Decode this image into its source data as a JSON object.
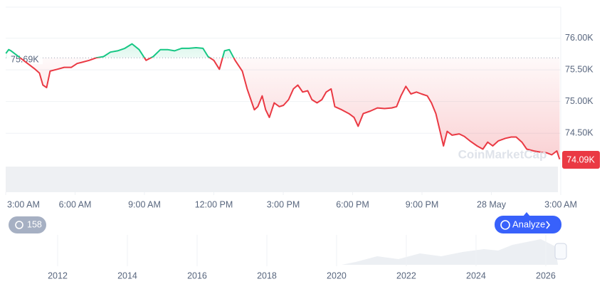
{
  "chart_data": {
    "type": "line",
    "x": [
      0.01,
      0.13,
      0.23,
      1.24,
      1.46,
      1.61,
      1.77,
      1.92,
      2.23,
      2.53,
      2.84,
      3.09,
      3.3,
      3.61,
      3.92,
      4.23,
      4.53,
      4.84,
      5.15,
      5.46,
      5.77,
      6.07,
      6.38,
      6.69,
      7.0,
      7.3,
      7.61,
      7.92,
      8.23,
      8.53,
      8.75,
      9.0,
      9.24,
      9.46,
      9.67,
      9.92,
      10.23,
      10.44,
      10.6,
      10.75,
      10.9,
      11.09,
      11.24,
      11.4,
      11.61,
      11.83,
      12.01,
      12.23,
      12.44,
      12.63,
      12.84,
      13.06,
      13.24,
      13.46,
      13.67,
      13.86,
      14.07,
      14.23,
      14.53,
      14.84,
      15.06,
      15.24,
      15.46,
      15.77,
      16.07,
      16.38,
      16.69,
      16.9,
      17.09,
      17.3,
      17.52,
      17.76,
      17.98,
      18.23,
      18.41,
      18.6,
      18.78,
      18.93,
      19.09,
      19.3,
      19.61,
      19.83,
      20.07,
      20.38,
      20.63,
      20.84,
      21.06,
      21.3,
      21.61,
      21.86,
      22.07,
      22.32,
      22.53,
      22.84,
      23.15,
      23.4,
      23.61,
      23.83,
      23.95
    ],
    "values": [
      75.76,
      75.82,
      75.8,
      75.52,
      75.45,
      75.26,
      75.22,
      75.48,
      75.51,
      75.54,
      75.54,
      75.6,
      75.62,
      75.65,
      75.69,
      75.71,
      75.78,
      75.8,
      75.84,
      75.91,
      75.82,
      75.65,
      75.71,
      75.82,
      75.82,
      75.8,
      75.84,
      75.84,
      75.85,
      75.84,
      75.71,
      75.65,
      75.51,
      75.8,
      75.82,
      75.65,
      75.48,
      75.2,
      75.03,
      74.87,
      74.92,
      75.09,
      74.87,
      74.75,
      74.98,
      74.92,
      74.94,
      75.03,
      75.2,
      75.26,
      75.15,
      75.17,
      75.03,
      74.98,
      75.03,
      75.15,
      75.2,
      74.92,
      74.87,
      74.81,
      74.75,
      74.61,
      74.81,
      74.85,
      74.9,
      74.89,
      74.9,
      74.92,
      75.09,
      75.24,
      75.12,
      75.15,
      75.12,
      75.09,
      74.98,
      74.81,
      74.53,
      74.3,
      74.53,
      74.47,
      74.49,
      74.45,
      74.38,
      74.3,
      74.25,
      74.36,
      74.3,
      74.38,
      74.42,
      74.44,
      74.44,
      74.36,
      74.25,
      74.22,
      74.2,
      74.19,
      74.16,
      74.22,
      74.09
    ],
    "last_label": "74.09K",
    "up_color": "#16c784",
    "down_color": "#ea3943",
    "reference": {
      "value": 75.69,
      "label": "75.69K"
    },
    "xlim": [
      0,
      24
    ],
    "xticks": [
      {
        "value": 0,
        "label": "3:00 AM"
      },
      {
        "value": 3,
        "label": "6:00 AM"
      },
      {
        "value": 6,
        "label": "9:00 AM"
      },
      {
        "value": 9,
        "label": "12:00 PM"
      },
      {
        "value": 12,
        "label": "3:00 PM"
      },
      {
        "value": 15,
        "label": "6:00 PM"
      },
      {
        "value": 18,
        "label": "9:00 PM"
      },
      {
        "value": 21,
        "label": "28 May"
      },
      {
        "value": 24,
        "label": "3:00 AM"
      }
    ],
    "ylim": [
      73.57,
      76.49
    ],
    "yticks": [
      {
        "value": 74.5,
        "label": "74.50K"
      },
      {
        "value": 75,
        "label": "75.00K"
      },
      {
        "value": 75.5,
        "label": "75.50K"
      },
      {
        "value": 76,
        "label": "76.00K"
      }
    ],
    "grid": true,
    "watermark": "CoinMarketCap",
    "navigator": {
      "xlim": [
        2010.51,
        2026.43
      ],
      "xticks": [
        2012,
        2014,
        2016,
        2018,
        2020,
        2022,
        2024,
        2026
      ]
    }
  },
  "history_badge": "158",
  "analyze_button": "Analyze"
}
